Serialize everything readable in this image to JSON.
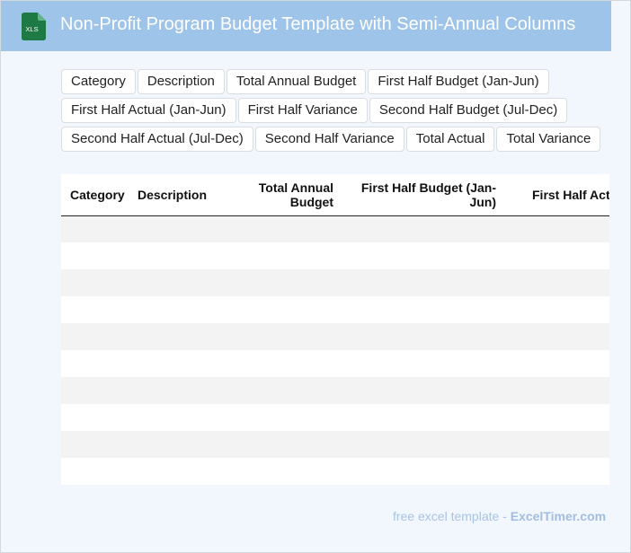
{
  "header": {
    "title": "Non-Profit Program Budget Template with Semi-Annual Columns",
    "icon_label": "XLS"
  },
  "chips": [
    "Category",
    "Description",
    "Total Annual Budget",
    "First Half Budget (Jan-Jun)",
    "First Half Actual (Jan-Jun)",
    "First Half Variance",
    "Second Half Budget (Jul-Dec)",
    "Second Half Actual (Jul-Dec)",
    "Second Half Variance",
    "Total Actual",
    "Total Variance"
  ],
  "table": {
    "columns": [
      "Category",
      "Description",
      "Total Annual Budget",
      "First Half Budget (Jan-Jun)",
      "First Half Actual (Jan-Jun)"
    ],
    "empty_rows": 10
  },
  "footer": {
    "prefix": "free excel template - ",
    "brand": "ExcelTimer.com"
  },
  "colors": {
    "header_bg": "#9fc4ea",
    "page_bg": "#f2f7fd",
    "icon_green": "#1d7a45"
  }
}
